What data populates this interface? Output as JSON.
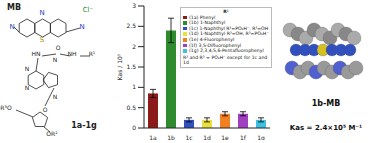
{
  "chart_data": {
    "type": "bar",
    "categories": [
      "1a",
      "1b",
      "1c",
      "1d",
      "1e",
      "1f",
      "1g"
    ],
    "ylabel": "Kas / 10⁵",
    "ylim": [
      0,
      3
    ],
    "yticks": [
      0,
      0.5,
      1,
      1.5,
      2,
      2.5,
      3
    ],
    "legend": "upper right",
    "legend_title": "R¹",
    "annotations": [
      "R² and R³ = PO₃H⁻ except for 1c and 1d"
    ],
    "series": [
      {
        "name": "(1a) Phenyl",
        "color": "#8b1a1a",
        "values": [
          0.85,
          null,
          null,
          null,
          null,
          null,
          null
        ],
        "errors": [
          0.1,
          null,
          null,
          null,
          null,
          null,
          null
        ]
      },
      {
        "name": "(1b) 1-Naphthyl",
        "color": "#2e8b2e",
        "values": [
          null,
          2.4,
          null,
          null,
          null,
          null,
          null
        ],
        "errors": [
          null,
          0.3,
          null,
          null,
          null,
          null,
          null
        ]
      },
      {
        "name": "(1c) 1-Naphthyl R²=PO₃H⁻, R³=OH",
        "color": "#3050c0",
        "values": [
          null,
          null,
          0.2,
          null,
          null,
          null,
          null
        ],
        "errors": [
          null,
          null,
          0.05,
          null,
          null,
          null,
          null
        ]
      },
      {
        "name": "(1d) 1-Naphthyl R²=OH, R³=PO₃H⁻",
        "color": "#e8e040",
        "values": [
          null,
          null,
          null,
          0.2,
          null,
          null,
          null
        ],
        "errors": [
          null,
          null,
          null,
          0.05,
          null,
          null,
          null
        ]
      },
      {
        "name": "(1e) 4-Fluorophenyl",
        "color": "#f08020",
        "values": [
          null,
          null,
          null,
          null,
          0.35,
          null,
          null
        ],
        "errors": [
          null,
          null,
          null,
          null,
          0.05,
          null,
          null
        ]
      },
      {
        "name": "(1f) 3,5-Difluorophenyl",
        "color": "#a040c0",
        "values": [
          null,
          null,
          null,
          null,
          null,
          0.35,
          null
        ],
        "errors": [
          null,
          null,
          null,
          null,
          null,
          0.05,
          null
        ]
      },
      {
        "name": "(1g) 2,3,4,5,6-Pentafluorophenyl",
        "color": "#40c0e0",
        "values": [
          null,
          null,
          null,
          null,
          null,
          null,
          0.2
        ],
        "errors": [
          null,
          null,
          null,
          null,
          null,
          null,
          0.05
        ]
      }
    ]
  },
  "figure": {
    "mb": {
      "title": "MB",
      "atoms": [
        "N",
        "N",
        "N",
        "S",
        "Cl⁻"
      ]
    },
    "nucleoside": {
      "title": "1a-1g",
      "atoms": [
        "N",
        "N",
        "N",
        "N",
        "HN",
        "O",
        "NH",
        "R¹",
        "O",
        "R³O",
        "OR²"
      ]
    },
    "complex": {
      "title": "1b-MB",
      "text": "Kas = 2.4×10⁵ M⁻¹"
    }
  }
}
